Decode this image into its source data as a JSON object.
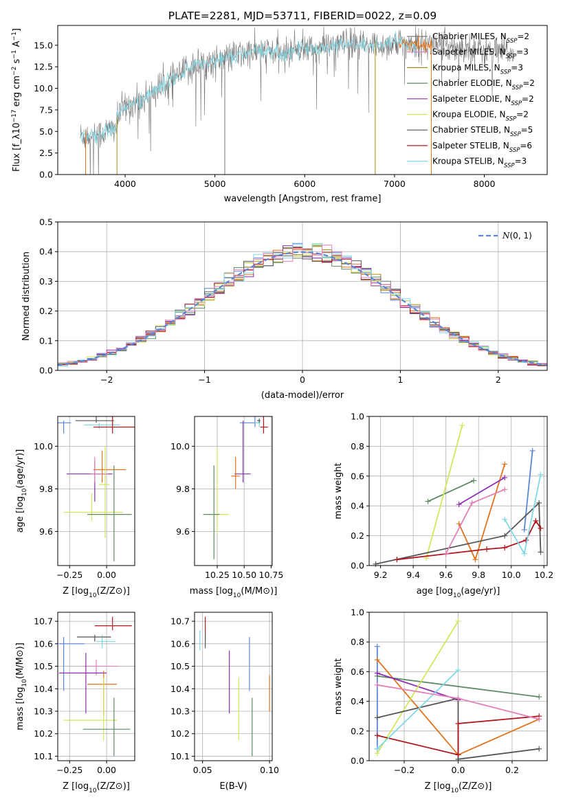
{
  "colors": [
    "#5b86d6",
    "#e2731c",
    "#a78a16",
    "#5c8a62",
    "#8e2db2",
    "#d4e65a",
    "#555555",
    "#b0151c",
    "#7fd9e6",
    "#e47fb9"
  ],
  "chart_data": [
    {
      "id": "spectrum",
      "type": "line",
      "title": "PLATE=2281, MJD=53711, FIBERID=0022, z=0.09",
      "xlabel": "wavelength [Angstrom, rest frame]",
      "ylabel": "Flux [f_λ10^{-17} erg cm^{-2} s^{-1} A^{-1}]",
      "xlim": [
        3250,
        8700
      ],
      "ylim": [
        0,
        17.3
      ],
      "xticks": [
        4000,
        5000,
        6000,
        7000,
        8000
      ],
      "yticks": [
        0.0,
        2.5,
        5.0,
        7.5,
        10.0,
        12.5,
        15.0
      ],
      "envelope": [
        [
          3500,
          4.5
        ],
        [
          3700,
          4.6
        ],
        [
          3900,
          5.5
        ],
        [
          3950,
          7.5
        ],
        [
          4050,
          8.0
        ],
        [
          4200,
          8.7
        ],
        [
          4400,
          10.2
        ],
        [
          4600,
          11.5
        ],
        [
          4800,
          12.8
        ],
        [
          5000,
          13.1
        ],
        [
          5200,
          13.7
        ],
        [
          5400,
          14.1
        ],
        [
          5600,
          14.3
        ],
        [
          5800,
          13.9
        ],
        [
          5900,
          14.8
        ],
        [
          6100,
          14.5
        ],
        [
          6300,
          15.0
        ],
        [
          6500,
          15.2
        ],
        [
          6700,
          14.9
        ],
        [
          6900,
          15.1
        ],
        [
          7100,
          15.2
        ],
        [
          7300,
          15.0
        ],
        [
          7500,
          15.1
        ],
        [
          7800,
          14.7
        ],
        [
          8100,
          14.2
        ],
        [
          8300,
          14.2
        ]
      ],
      "legend": [
        {
          "pre": "Chabrier MILES, N",
          "sub": "SSP",
          "post": "=2"
        },
        {
          "pre": "Salpeter MILES, N",
          "sub": "SSP",
          "post": "=3"
        },
        {
          "pre": "Kroupa MILES, N",
          "sub": "SSP",
          "post": "=3"
        },
        {
          "pre": "Chabrier ELODIE, N",
          "sub": "SSP",
          "post": "=2"
        },
        {
          "pre": "Salpeter ELODIE, N",
          "sub": "SSP",
          "post": "=2"
        },
        {
          "pre": "Kroupa ELODIE, N",
          "sub": "SSP",
          "post": "=2"
        },
        {
          "pre": "Chabrier STELIB, N",
          "sub": "SSP",
          "post": "=5"
        },
        {
          "pre": "Salpeter STELIB, N",
          "sub": "SSP",
          "post": "=6"
        },
        {
          "pre": "Kroupa STELIB, N",
          "sub": "SSP",
          "post": "=3"
        }
      ],
      "legend_colors": [
        "#7a7a7a",
        "#e47fb9",
        "#a78a16",
        "#5c8a62",
        "#8e2db2",
        "#d4e65a",
        "#555555",
        "#b0151c",
        "#7fd9e6"
      ],
      "legend_position": "upper-right"
    },
    {
      "id": "residuals",
      "type": "step-histogram",
      "xlabel": "(data-model)/error",
      "ylabel": "Normed distribution",
      "xlim": [
        -2.5,
        2.5
      ],
      "ylim": [
        0,
        0.5
      ],
      "xticks": [
        -2,
        -1,
        0,
        1,
        2
      ],
      "yticks": [
        0.0,
        0.1,
        0.2,
        0.3,
        0.4,
        0.5
      ],
      "bin_width": 0.1,
      "normal_label": "N(0,1)",
      "legend_position": "upper-right",
      "grid": true
    },
    {
      "id": "age-vs-Z",
      "type": "errorbar",
      "xlabel": "Z [log10(Z/Z⊙)]",
      "ylabel": "age [log10(age/yr)]",
      "xlim": [
        -0.33,
        0.19
      ],
      "ylim": [
        9.44,
        10.14
      ],
      "xticks": [
        -0.25,
        0.0
      ],
      "yticks": [
        9.6,
        9.8,
        10.0
      ],
      "points": [
        {
          "x": -0.29,
          "y": 10.11,
          "xerr": [
            0.29,
            0.05
          ],
          "yerr": [
            0.05,
            0.01
          ],
          "c": 0
        },
        {
          "x": -0.05,
          "y": 10.1,
          "xerr": [
            0.1,
            0.14
          ],
          "yerr": [
            0.02,
            0.01
          ],
          "c": 8
        },
        {
          "x": -0.07,
          "y": 10.12,
          "xerr": [
            0.14,
            0.12
          ],
          "yerr": [
            0.01,
            0.02
          ],
          "c": 6
        },
        {
          "x": 0.04,
          "y": 10.09,
          "xerr": [
            0.13,
            0.15
          ],
          "yerr": [
            0.03,
            0.06
          ],
          "c": 7
        },
        {
          "x": -0.08,
          "y": 9.87,
          "xerr": [
            0.19,
            0.12
          ],
          "yerr": [
            0.13,
            0.06
          ],
          "c": 4
        },
        {
          "x": -0.03,
          "y": 9.89,
          "xerr": [
            0.06,
            0.16
          ],
          "yerr": [
            0.06,
            0.09
          ],
          "c": 1
        },
        {
          "x": -0.08,
          "y": 9.87,
          "xerr": [
            0.03,
            0.09
          ],
          "yerr": [
            0.04,
            0.08
          ],
          "c": 9
        },
        {
          "x": -0.01,
          "y": 9.82,
          "xerr": [
            0.04,
            0.03
          ],
          "yerr": [
            0.25,
            0.18
          ],
          "c": 5
        },
        {
          "x": -0.1,
          "y": 9.69,
          "xerr": [
            0.19,
            0.21
          ],
          "yerr": [
            0.04,
            0.09
          ],
          "c": 5
        },
        {
          "x": 0.05,
          "y": 9.68,
          "xerr": [
            0.18,
            0.12
          ],
          "yerr": [
            0.22,
            0.23
          ],
          "c": 3
        }
      ]
    },
    {
      "id": "age-vs-mass",
      "type": "errorbar",
      "xlabel": "mass [log10(M/M⊙)]",
      "ylabel": "",
      "xlim": [
        10.04,
        10.76
      ],
      "ylim": [
        9.44,
        10.14
      ],
      "xticks": [
        10.25,
        10.5,
        10.75
      ],
      "yticks": [
        9.6,
        9.8,
        10.0
      ],
      "points": [
        {
          "x": 10.6,
          "y": 10.11,
          "xerr": [
            0.14,
            0.04
          ],
          "yerr": [
            0.02,
            0.03
          ],
          "c": 0
        },
        {
          "x": 10.64,
          "y": 10.11,
          "xerr": [
            0.04,
            0.01
          ],
          "yerr": [
            0.02,
            0.02
          ],
          "c": 8
        },
        {
          "x": 10.64,
          "y": 10.12,
          "xerr": [
            0.02,
            0.01
          ],
          "yerr": [
            0.01,
            0.01
          ],
          "c": 6
        },
        {
          "x": 10.68,
          "y": 10.09,
          "xerr": [
            0.03,
            0.04
          ],
          "yerr": [
            0.03,
            0.06
          ],
          "c": 7
        },
        {
          "x": 10.49,
          "y": 9.87,
          "xerr": [
            0.08,
            0.07
          ],
          "yerr": [
            0.04,
            0.25
          ],
          "c": 4
        },
        {
          "x": 10.42,
          "y": 9.86,
          "xerr": [
            0.04,
            0.04
          ],
          "yerr": [
            0.06,
            0.09
          ],
          "c": 1
        },
        {
          "x": 10.25,
          "y": 9.68,
          "xerr": [
            0.07,
            0.11
          ],
          "yerr": [
            0.09,
            0.31
          ],
          "c": 5
        },
        {
          "x": 10.22,
          "y": 9.68,
          "xerr": [
            0.1,
            0.05
          ],
          "yerr": [
            0.21,
            0.23
          ],
          "c": 3
        }
      ]
    },
    {
      "id": "weight-vs-age",
      "type": "line",
      "xlabel": "age [log10(age/yr)]",
      "ylabel": "mass weight",
      "xlim": [
        9.13,
        10.22
      ],
      "ylim": [
        0,
        1.0
      ],
      "xticks": [
        9.2,
        9.4,
        9.6,
        9.8,
        10.0,
        10.2
      ],
      "yticks": [
        0.0,
        0.2,
        0.4,
        0.6,
        0.8,
        1.0
      ],
      "grid": true,
      "series": [
        {
          "c": 0,
          "points": [
            [
              10.08,
              0.24
            ],
            [
              10.13,
              0.77
            ]
          ]
        },
        {
          "c": 1,
          "points": [
            [
              9.68,
              0.28
            ],
            [
              9.78,
              0.04
            ],
            [
              9.96,
              0.68
            ]
          ]
        },
        {
          "c": 3,
          "points": [
            [
              9.49,
              0.43
            ],
            [
              9.77,
              0.57
            ]
          ]
        },
        {
          "c": 4,
          "points": [
            [
              9.68,
              0.41
            ],
            [
              9.96,
              0.59
            ]
          ]
        },
        {
          "c": 5,
          "points": [
            [
              9.48,
              0.05
            ],
            [
              9.7,
              0.94
            ]
          ]
        },
        {
          "c": 6,
          "points": [
            [
              9.17,
              0.01
            ],
            [
              9.96,
              0.2
            ],
            [
              10.17,
              0.42
            ],
            [
              10.18,
              0.09
            ]
          ]
        },
        {
          "c": 7,
          "points": [
            [
              9.3,
              0.04
            ],
            [
              9.85,
              0.11
            ],
            [
              9.96,
              0.12
            ],
            [
              10.09,
              0.17
            ],
            [
              10.15,
              0.3
            ],
            [
              10.18,
              0.25
            ]
          ]
        },
        {
          "c": 8,
          "points": [
            [
              9.96,
              0.31
            ],
            [
              10.08,
              0.08
            ],
            [
              10.18,
              0.61
            ]
          ]
        },
        {
          "c": 9,
          "points": [
            [
              9.6,
              0.08
            ],
            [
              9.76,
              0.42
            ],
            [
              9.96,
              0.51
            ]
          ]
        }
      ]
    },
    {
      "id": "mass-vs-Z",
      "type": "errorbar",
      "xlabel": "Z [log10(Z/Z⊙)]",
      "ylabel": "mass [log10(M/M⊙)]",
      "xlim": [
        -0.33,
        0.19
      ],
      "ylim": [
        10.08,
        10.74
      ],
      "xticks": [
        -0.25,
        0.0
      ],
      "yticks": [
        10.1,
        10.2,
        10.3,
        10.4,
        10.5,
        10.6,
        10.7
      ],
      "points": [
        {
          "x": -0.29,
          "y": 10.6,
          "xerr": [
            0.03,
            0.14
          ],
          "yerr": [
            0.21,
            0.03
          ],
          "c": 0
        },
        {
          "x": -0.03,
          "y": 10.61,
          "xerr": [
            0.04,
            0.09
          ],
          "yerr": [
            0.03,
            0.03
          ],
          "c": 8
        },
        {
          "x": -0.08,
          "y": 10.63,
          "xerr": [
            0.12,
            0.11
          ],
          "yerr": [
            0.02,
            0.01
          ],
          "c": 6
        },
        {
          "x": 0.04,
          "y": 10.68,
          "xerr": [
            0.12,
            0.13
          ],
          "yerr": [
            0.02,
            0.04
          ],
          "c": 7
        },
        {
          "x": -0.07,
          "y": 10.5,
          "xerr": [
            0.09,
            0.15
          ],
          "yerr": [
            0.04,
            0.03
          ],
          "c": 9
        },
        {
          "x": -0.14,
          "y": 10.47,
          "xerr": [
            0.18,
            0.14
          ],
          "yerr": [
            0.18,
            0.09
          ],
          "c": 4
        },
        {
          "x": -0.02,
          "y": 10.42,
          "xerr": [
            0.11,
            0.09
          ],
          "yerr": [
            0.14,
            0.06
          ],
          "c": 1
        },
        {
          "x": -0.02,
          "y": 10.26,
          "xerr": [
            0.27,
            0.09
          ],
          "yerr": [
            0.09,
            0.19
          ],
          "c": 5
        },
        {
          "x": 0.05,
          "y": 10.22,
          "xerr": [
            0.21,
            0.11
          ],
          "yerr": [
            0.12,
            0.14
          ],
          "c": 3
        }
      ]
    },
    {
      "id": "mass-vs-EBV",
      "type": "errorbar",
      "xlabel": "E(B-V)",
      "ylabel": "",
      "xlim": [
        0.044,
        0.102
      ],
      "ylim": [
        10.08,
        10.74
      ],
      "xticks": [
        0.05,
        0.1
      ],
      "yticks": [
        10.1,
        10.2,
        10.3,
        10.4,
        10.5,
        10.6,
        10.7
      ],
      "points": [
        {
          "x": 0.048,
          "y": 10.61,
          "xerr": [
            0,
            0
          ],
          "yerr": [
            0.04,
            0.05
          ],
          "c": 8
        },
        {
          "x": 0.052,
          "y": 10.67,
          "xerr": [
            0,
            0
          ],
          "yerr": [
            0.06,
            0.05
          ],
          "c": 7
        },
        {
          "x": 0.052,
          "y": 10.62,
          "xerr": [
            0,
            0
          ],
          "yerr": [
            0.04,
            0.03
          ],
          "c": 6
        },
        {
          "x": 0.07,
          "y": 10.43,
          "xerr": [
            0,
            0
          ],
          "yerr": [
            0.14,
            0.14
          ],
          "c": 4
        },
        {
          "x": 0.077,
          "y": 10.31,
          "xerr": [
            0,
            0
          ],
          "yerr": [
            0.14,
            0.14
          ],
          "c": 5
        },
        {
          "x": 0.085,
          "y": 10.47,
          "xerr": [
            0,
            0
          ],
          "yerr": [
            0.08,
            0.16
          ],
          "c": 0
        },
        {
          "x": 0.087,
          "y": 10.22,
          "xerr": [
            0,
            0
          ],
          "yerr": [
            0.12,
            0.14
          ],
          "c": 3
        },
        {
          "x": 0.1,
          "y": 10.38,
          "xerr": [
            0,
            0
          ],
          "yerr": [
            0.08,
            0.08
          ],
          "c": 1
        }
      ]
    },
    {
      "id": "weight-vs-Z",
      "type": "line",
      "xlabel": "Z [log10(Z/Z⊙)]",
      "ylabel": "mass weight",
      "xlim": [
        -0.33,
        0.33
      ],
      "ylim": [
        0,
        1.0
      ],
      "xticks": [
        -0.2,
        0.0,
        0.2
      ],
      "yticks": [
        0.0,
        0.2,
        0.4,
        0.6,
        0.8,
        1.0
      ],
      "grid": true,
      "series": [
        {
          "c": 0,
          "points": [
            [
              -0.3,
              0.08
            ],
            [
              -0.3,
              0.77
            ]
          ]
        },
        {
          "c": 1,
          "points": [
            [
              -0.3,
              0.68
            ],
            [
              0.0,
              0.04
            ],
            [
              0.3,
              0.28
            ]
          ]
        },
        {
          "c": 3,
          "points": [
            [
              -0.3,
              0.57
            ],
            [
              0.3,
              0.43
            ]
          ]
        },
        {
          "c": 4,
          "points": [
            [
              -0.3,
              0.59
            ],
            [
              0.0,
              0.41
            ]
          ]
        },
        {
          "c": 5,
          "points": [
            [
              -0.3,
              0.05
            ],
            [
              0.0,
              0.94
            ]
          ]
        },
        {
          "c": 6,
          "points": [
            [
              -0.3,
              0.29
            ],
            [
              0.0,
              0.42
            ],
            [
              0.0,
              0.01
            ],
            [
              0.3,
              0.08
            ]
          ]
        },
        {
          "c": 7,
          "points": [
            [
              -0.3,
              0.17
            ],
            [
              0.0,
              0.04
            ],
            [
              0.0,
              0.25
            ],
            [
              0.3,
              0.3
            ]
          ]
        },
        {
          "c": 8,
          "points": [
            [
              -0.3,
              0.08
            ],
            [
              0.0,
              0.61
            ]
          ]
        },
        {
          "c": 9,
          "points": [
            [
              -0.3,
              0.51
            ],
            [
              0.0,
              0.42
            ],
            [
              0.3,
              0.28
            ]
          ]
        }
      ]
    }
  ]
}
